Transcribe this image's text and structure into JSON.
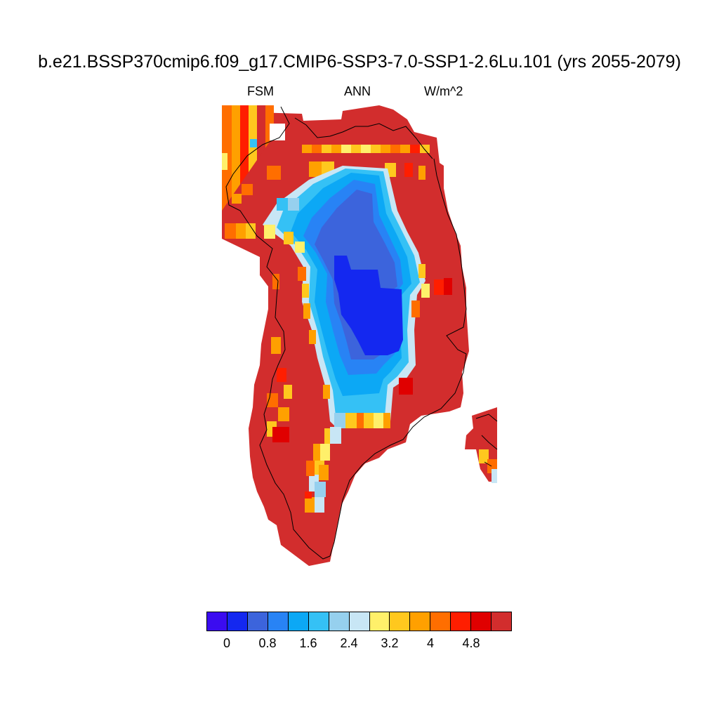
{
  "title": "b.e21.BSSP370cmip6.f09_g17.CMIP6-SSP3-7.0-SSP1-2.6Lu.101 (yrs 2055-2079)",
  "subtitle": {
    "left": "FSM",
    "center": "ANN",
    "right": "W/m^2"
  },
  "colorbar": {
    "colors": [
      "#3b0cf0",
      "#1428f0",
      "#3c64dc",
      "#2883f5",
      "#0ca8f5",
      "#35c1f5",
      "#96d0ee",
      "#c8e6f5",
      "#fff06a",
      "#ffc81e",
      "#ffa000",
      "#ff6e00",
      "#ff1e00",
      "#e00000",
      "#d22d2d"
    ],
    "tick_labels": [
      "0",
      "0.8",
      "1.6",
      "2.4",
      "3.2",
      "4",
      "4.8"
    ],
    "tick_boundary_index": [
      1,
      3,
      5,
      7,
      9,
      11,
      13
    ]
  },
  "map_colors": {
    "outer": "#d22d2d",
    "deep_red": "#e00000",
    "bright_red": "#ff1e00",
    "orange": "#ff6e00",
    "amber": "#ffa000",
    "gold": "#ffc81e",
    "yellow": "#fff06a",
    "pale_blue": "#c8e6f5",
    "light_blue": "#96d0ee",
    "sky": "#35c1f5",
    "azure": "#0ca8f5",
    "mid_blue": "#2883f5",
    "steel_blue": "#3c64dc",
    "core_blue": "#1428f0"
  }
}
